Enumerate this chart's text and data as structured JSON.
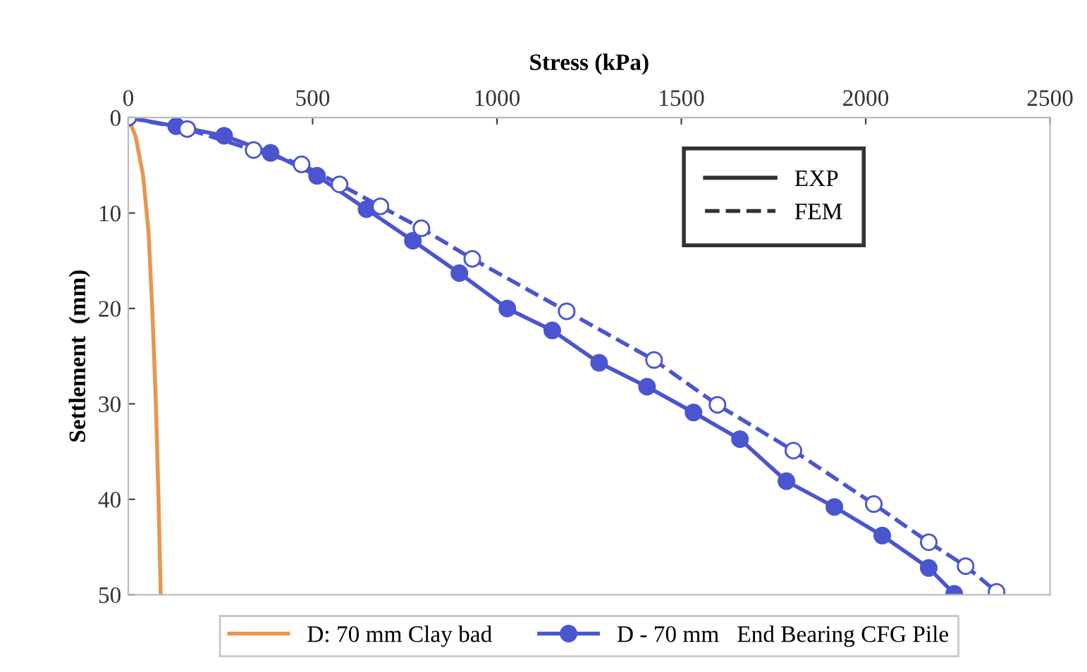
{
  "chart_data": {
    "type": "line",
    "xlabel": "Stress (kPa)",
    "ylabel": "Settlement  (mm)",
    "xlim": [
      0,
      2500
    ],
    "xticks": [
      0,
      500,
      1000,
      1500,
      2000,
      2500
    ],
    "ylim": [
      50,
      0
    ],
    "yticks": [
      0,
      10,
      20,
      30,
      40,
      50
    ],
    "grid": false,
    "legend": "bottom",
    "annotations": [
      "EXP",
      "FEM"
    ],
    "series": [
      {
        "name": "D: 70 mm Clay bad",
        "color": "#e8964f",
        "marker": "none",
        "line_style": "solid",
        "x": [
          0,
          20,
          40,
          55,
          65,
          75,
          82,
          88
        ],
        "values": [
          0,
          2,
          6,
          12,
          20,
          30,
          40,
          50
        ]
      },
      {
        "name": "D - 70 mm   End Bearing CFG Pile",
        "color": "#4a55d0",
        "marker": "circle",
        "line_style": "solid",
        "x": [
          0,
          130,
          260,
          386,
          512,
          646,
          772,
          898,
          1028,
          1150,
          1277,
          1407,
          1533,
          1659,
          1785,
          1915,
          2045,
          2171,
          2240
        ],
        "values": [
          0,
          0.9,
          1.9,
          3.7,
          6.1,
          9.6,
          12.9,
          16.3,
          20.0,
          22.3,
          25.7,
          28.2,
          30.9,
          33.7,
          38.1,
          40.8,
          43.8,
          47.2,
          49.9
        ]
      },
      {
        "color": "#4a55d0",
        "marker": "circle",
        "line_style": "dashed",
        "x": [
          0,
          160,
          340,
          470,
          573,
          684,
          795,
          933,
          1189,
          1426,
          1598,
          1804,
          2022,
          2171,
          2271,
          2355
        ],
        "values": [
          0,
          1.2,
          3.4,
          4.9,
          7.0,
          9.3,
          11.6,
          14.8,
          20.3,
          25.4,
          30.1,
          34.9,
          40.5,
          44.5,
          47.0,
          49.7
        ]
      }
    ]
  }
}
